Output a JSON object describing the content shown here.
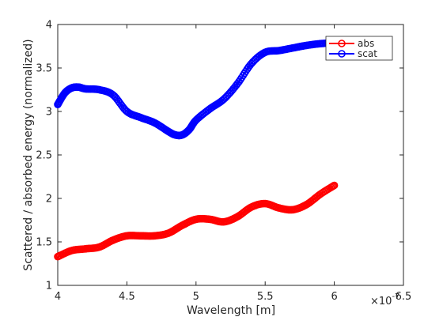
{
  "chart_data": {
    "type": "line",
    "xlabel": "Wavelength [m]",
    "ylabel": "Scattered / absorbed energy (normalized)",
    "x_exponent_label": "×10",
    "x_exponent_power": "-7",
    "xlim": [
      4.0,
      6.5
    ],
    "ylim": [
      1,
      4
    ],
    "xticks": [
      4.0,
      4.5,
      5.0,
      5.5,
      6.0,
      6.5
    ],
    "xtick_labels": [
      "4",
      "4.5",
      "5",
      "5.5",
      "6",
      "6.5"
    ],
    "yticks": [
      1,
      1.5,
      2,
      2.5,
      3,
      3.5,
      4
    ],
    "ytick_labels": [
      "1",
      "1.5",
      "2",
      "2.5",
      "3",
      "3.5",
      "4"
    ],
    "x_scale_factor": 1e-07,
    "grid": false,
    "legend_position": "top-right",
    "series": [
      {
        "name": "abs",
        "color": "#ff0000",
        "marker": "circle",
        "x": [
          4.0,
          4.1,
          4.2,
          4.3,
          4.4,
          4.5,
          4.6,
          4.7,
          4.8,
          4.9,
          5.0,
          5.1,
          5.2,
          5.3,
          5.4,
          5.5,
          5.6,
          5.7,
          5.8,
          5.9,
          6.0
        ],
        "y": [
          1.33,
          1.4,
          1.42,
          1.44,
          1.52,
          1.57,
          1.57,
          1.57,
          1.6,
          1.69,
          1.76,
          1.76,
          1.73,
          1.79,
          1.9,
          1.94,
          1.89,
          1.87,
          1.93,
          2.05,
          2.15
        ]
      },
      {
        "name": "scat",
        "color": "#0000ff",
        "marker": "circle",
        "x": [
          4.0,
          4.05,
          4.1,
          4.15,
          4.2,
          4.3,
          4.4,
          4.5,
          4.6,
          4.7,
          4.8,
          4.85,
          4.9,
          4.95,
          5.0,
          5.1,
          5.2,
          5.3,
          5.4,
          5.5,
          5.6,
          5.7,
          5.8,
          5.9,
          6.0
        ],
        "y": [
          3.08,
          3.21,
          3.27,
          3.28,
          3.26,
          3.25,
          3.19,
          3.0,
          2.93,
          2.87,
          2.77,
          2.73,
          2.73,
          2.79,
          2.9,
          3.03,
          3.14,
          3.32,
          3.55,
          3.68,
          3.7,
          3.73,
          3.76,
          3.78,
          3.79
        ]
      }
    ]
  }
}
